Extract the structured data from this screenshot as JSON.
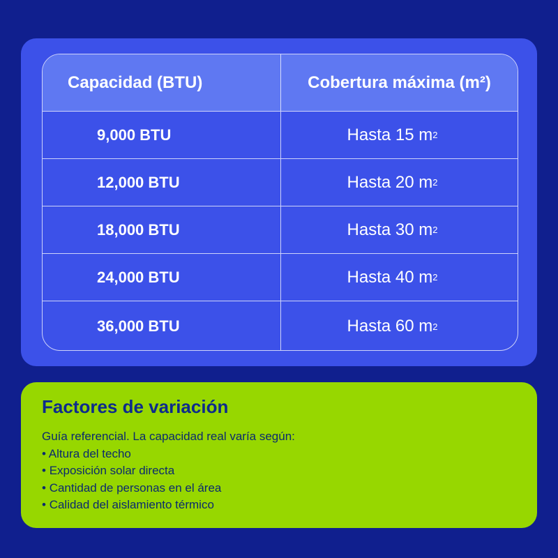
{
  "table": {
    "headers": [
      "Capacidad (BTU)",
      "Cobertura máxima (m²)"
    ],
    "rows": [
      {
        "capacity": "9,000 BTU",
        "coverage": "Hasta 15 m",
        "sup": "2"
      },
      {
        "capacity": "12,000 BTU",
        "coverage": "Hasta 20 m",
        "sup": "2"
      },
      {
        "capacity": "18,000 BTU",
        "coverage": "Hasta 30 m",
        "sup": "2"
      },
      {
        "capacity": "24,000 BTU",
        "coverage": "Hasta 40 m",
        "sup": "2"
      },
      {
        "capacity": "36,000 BTU",
        "coverage": "Hasta 60 m",
        "sup": "2"
      }
    ]
  },
  "factors": {
    "title": "Factores de variación",
    "intro": "Guía referencial. La capacidad real varía según:",
    "items": [
      "Altura del techo",
      "Exposición solar directa",
      "Cantidad de personas en el área",
      "Calidad del aislamiento térmico"
    ]
  },
  "colors": {
    "background": "#101f8e",
    "card": "#3c51e9",
    "header": "#5f78f2",
    "green": "#97d700",
    "title": "#0d2b8c"
  }
}
